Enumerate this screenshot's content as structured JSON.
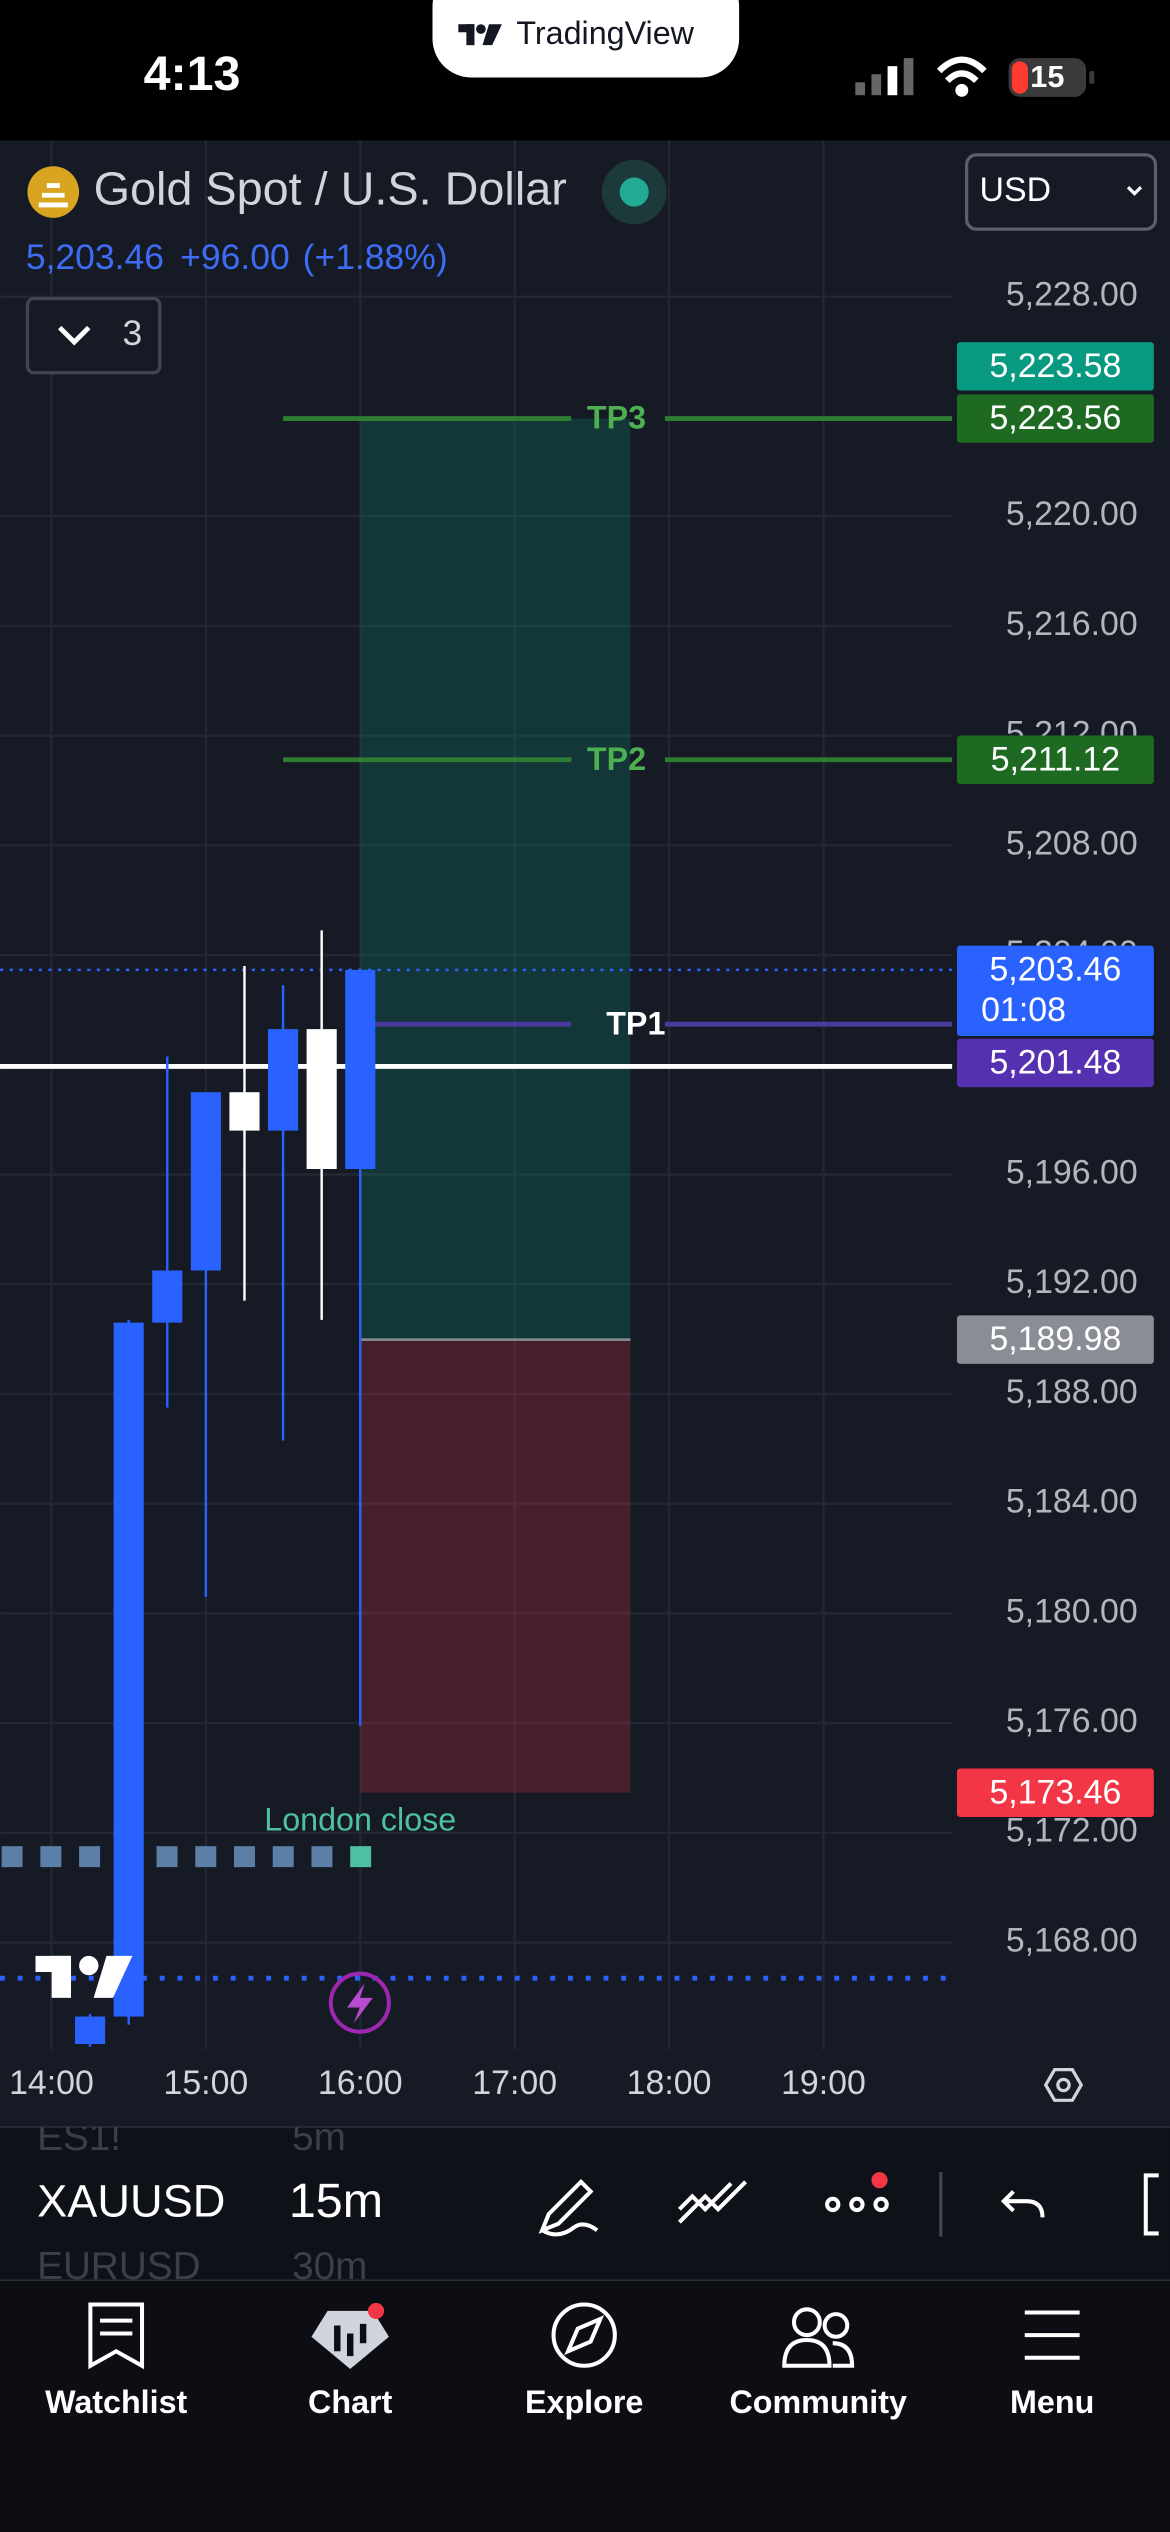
{
  "status_bar": {
    "time": "4:13",
    "app": "TradingView",
    "battery": "15"
  },
  "header": {
    "title": "Gold Spot / U.S. Dollar",
    "price": "5,203.46",
    "change": "+96.00",
    "change_percent": "(+1.88%)",
    "currency": "USD",
    "indicators": "3"
  },
  "chart_data": {
    "type": "candlestick",
    "x": [
      "14:15",
      "14:30",
      "14:45",
      "15:00",
      "15:15",
      "15:30",
      "15:45",
      "16:00"
    ],
    "open": [
      5164.3,
      5165.3,
      5190.6,
      5192.5,
      5199.0,
      5197.6,
      5201.3,
      5196.2
    ],
    "high": [
      5165.4,
      5190.7,
      5200.3,
      5199.0,
      5203.6,
      5202.9,
      5204.9,
      5203.46
    ],
    "low": [
      5164.2,
      5165.0,
      5187.5,
      5180.6,
      5191.4,
      5186.3,
      5190.7,
      5175.9
    ],
    "close": [
      5165.3,
      5190.6,
      5192.5,
      5199.0,
      5197.6,
      5201.3,
      5196.2,
      5203.46
    ],
    "up_color": "#2962ff",
    "down_color": "#ffffff",
    "xlim": [
      "13:40",
      "19:50"
    ],
    "xticks": [
      "14:00",
      "15:00",
      "16:00",
      "17:00",
      "18:00",
      "19:00"
    ],
    "ylim": [
      5164.1,
      5233.7
    ],
    "yticks": [
      {
        "value": 5228,
        "label": "5,228.00"
      },
      {
        "value": 5220,
        "label": "5,220.00"
      },
      {
        "value": 5216,
        "label": "5,216.00"
      },
      {
        "value": 5212,
        "label": "5,212.00"
      },
      {
        "value": 5208,
        "label": "5,208.00"
      },
      {
        "value": 5204,
        "label": "5,204.00"
      },
      {
        "value": 5196,
        "label": "5,196.00"
      },
      {
        "value": 5192,
        "label": "5,192.00"
      },
      {
        "value": 5188,
        "label": "5,188.00"
      },
      {
        "value": 5184,
        "label": "5,184.00"
      },
      {
        "value": 5180,
        "label": "5,180.00"
      },
      {
        "value": 5176,
        "label": "5,176.00"
      },
      {
        "value": 5172,
        "label": "5,172.00"
      },
      {
        "value": 5168,
        "label": "5,168.00"
      }
    ],
    "grid": true,
    "price_labels": {
      "values": [
        5223.58,
        5223.56,
        5211.12,
        5203.46,
        5201.48,
        5189.98,
        5173.46
      ],
      "value_labels": [
        "5,223.58",
        "5,223.56",
        "5,211.12",
        "5,203.46",
        "5,201.48",
        "5,189.98",
        "5,173.46"
      ],
      "colors": [
        "#089981",
        "#1e6a23",
        "#1e6a23",
        "#2962ff",
        "#5530b0",
        "#8a8d96",
        "#f23645"
      ]
    },
    "countdown": "01:08",
    "tp_lines": [
      {
        "name": "TP3",
        "value": 5223.56,
        "color": "#2e7d32",
        "label_color": "#4caf50",
        "start": "15:30"
      },
      {
        "name": "TP2",
        "value": 5211.12,
        "color": "#2e7d32",
        "label_color": "#4caf50",
        "start": "15:30"
      },
      {
        "name": "TP1",
        "value": 5201.48,
        "color": "#4b3a9e",
        "label_color": "#ffffff",
        "start": "16:00"
      }
    ],
    "position": {
      "start": "16:00",
      "end": "17:45",
      "entry": 5189.98,
      "stop": 5173.46,
      "target": 5223.56
    },
    "hline": {
      "value": 5199.94,
      "color": "#ffffff"
    },
    "dotted_line": {
      "value": 5166.7,
      "color": "#2962ff"
    },
    "annotation": {
      "text": "London close",
      "time": "16:00"
    }
  },
  "toolbar": {
    "prev_symbol": "ES1!",
    "prev_interval": "5m",
    "symbol": "XAUUSD",
    "interval": "15m",
    "next_symbol": "EURUSD",
    "next_interval": "30m"
  },
  "tab_bar": {
    "tabs": [
      "Watchlist",
      "Chart",
      "Explore",
      "Community",
      "Menu"
    ]
  }
}
